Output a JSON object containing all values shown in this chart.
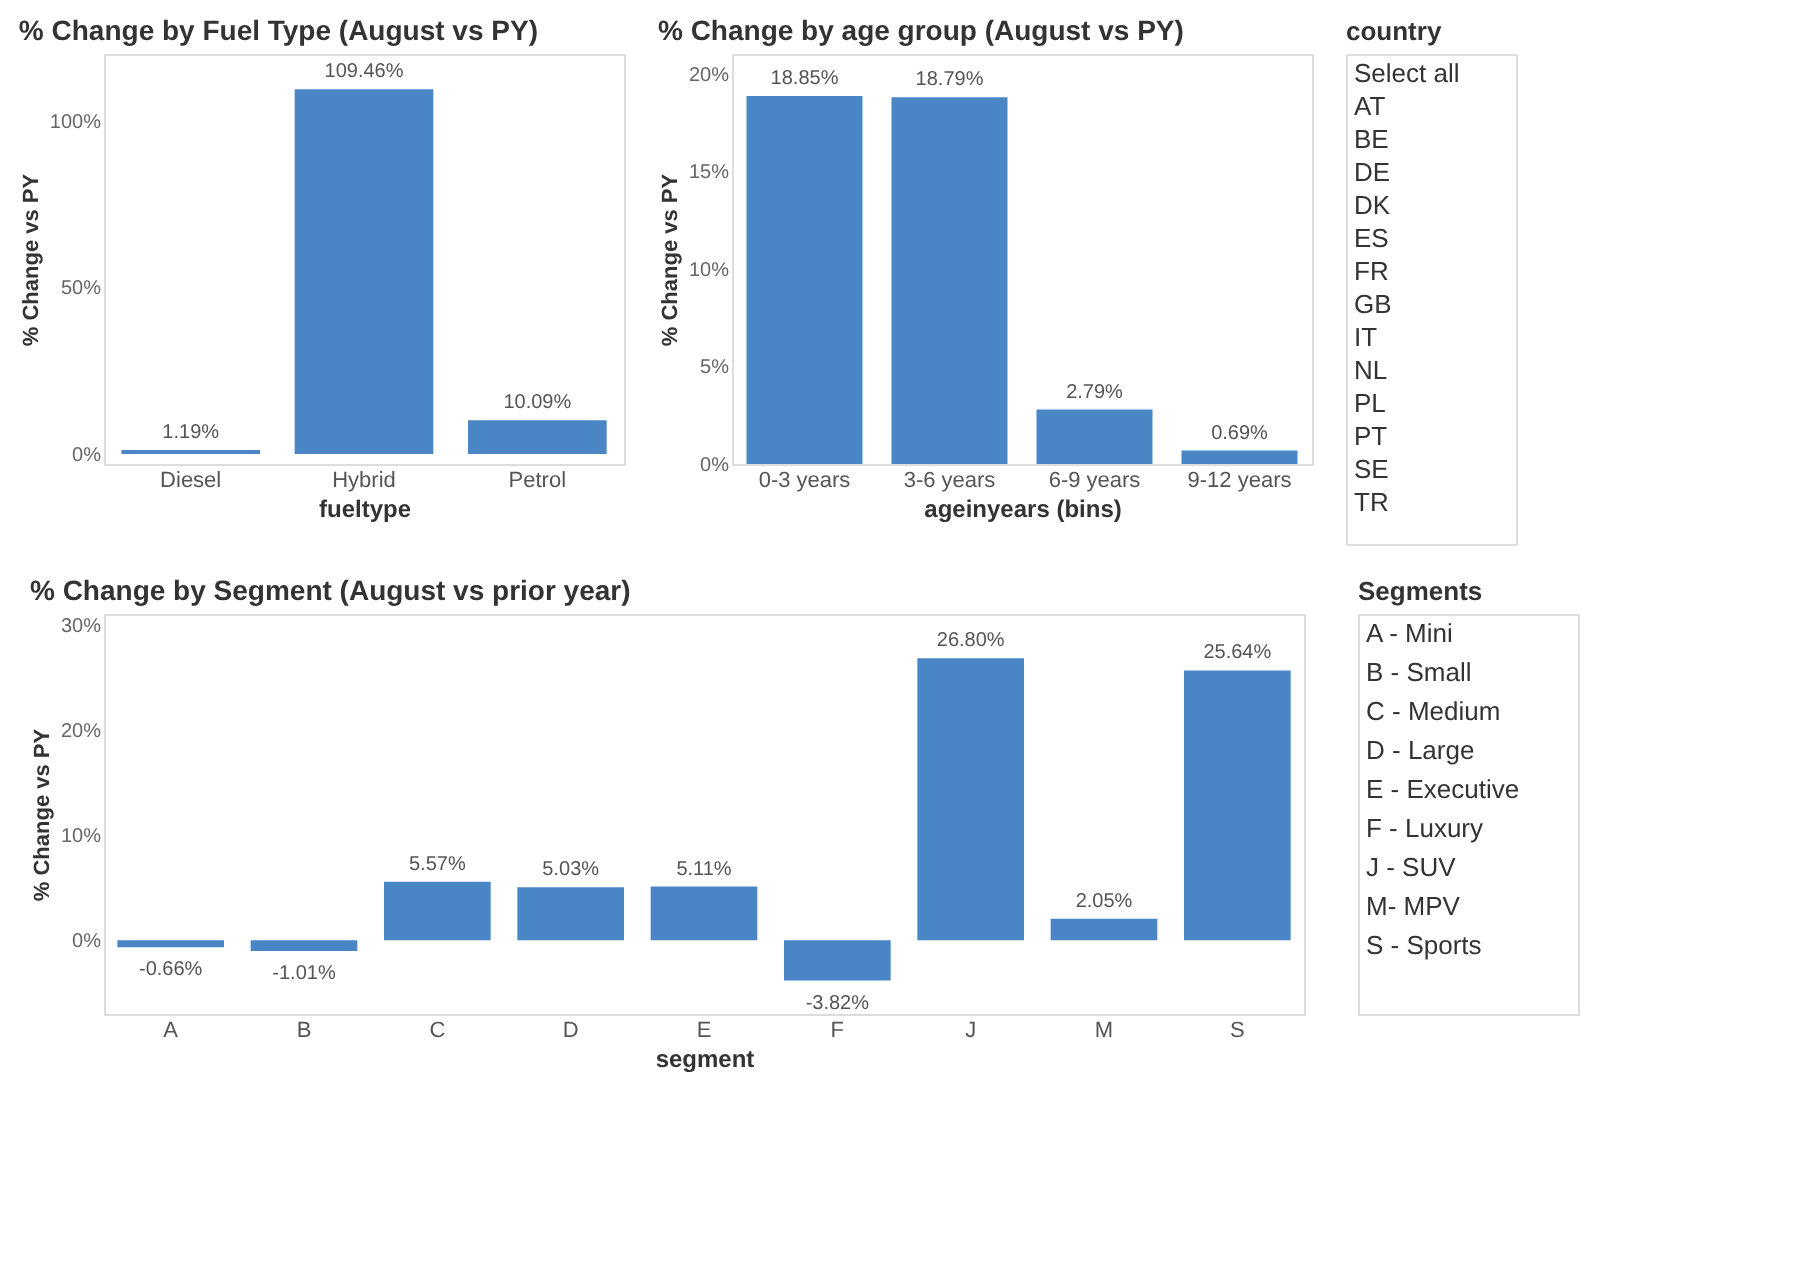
{
  "chart_data": [
    {
      "type": "bar",
      "title": "% Change by Fuel Type (August vs PY)",
      "xlabel": "fueltype",
      "ylabel": "% Change vs PY",
      "categories": [
        "Diesel",
        "Hybrid",
        "Petrol"
      ],
      "values": [
        1.19,
        109.46,
        10.09
      ],
      "value_labels": [
        "1.19%",
        "109.46%",
        "10.09%"
      ],
      "color": "#4a86c5",
      "ylim": [
        -3,
        120
      ],
      "yticks": [
        {
          "value": 0,
          "label": "0%"
        },
        {
          "value": 50,
          "label": "50%"
        },
        {
          "value": 100,
          "label": "100%"
        }
      ]
    },
    {
      "type": "bar",
      "title": "% Change by age group (August vs PY)",
      "xlabel": "ageinyears (bins)",
      "ylabel": "% Change vs PY",
      "categories": [
        "0-3 years",
        "3-6 years",
        "6-9 years",
        "9-12 years"
      ],
      "values": [
        18.85,
        18.79,
        2.79,
        0.69
      ],
      "value_labels": [
        "18.85%",
        "18.79%",
        "2.79%",
        "0.69%"
      ],
      "color": "#4a86c5",
      "ylim": [
        0,
        21
      ],
      "yticks": [
        {
          "value": 0,
          "label": "0%"
        },
        {
          "value": 5,
          "label": "5%"
        },
        {
          "value": 10,
          "label": "10%"
        },
        {
          "value": 15,
          "label": "15%"
        },
        {
          "value": 20,
          "label": "20%"
        }
      ]
    },
    {
      "type": "other",
      "title": "country",
      "annotations": [
        "Select all",
        "AT",
        "BE",
        "DE",
        "DK",
        "ES",
        "FR",
        "GB",
        "IT",
        "NL",
        "PL",
        "PT",
        "SE",
        "TR"
      ]
    },
    {
      "type": "bar",
      "title": "% Change by Segment (August vs prior year)",
      "xlabel": "segment",
      "ylabel": "% Change vs PY",
      "categories": [
        "A",
        "B",
        "C",
        "D",
        "E",
        "F",
        "J",
        "M",
        "S"
      ],
      "values": [
        -0.66,
        -1.01,
        5.57,
        5.03,
        5.11,
        -3.82,
        26.8,
        2.05,
        25.64
      ],
      "value_labels": [
        "-0.66%",
        "-1.01%",
        "5.57%",
        "5.03%",
        "5.11%",
        "-3.82%",
        "26.80%",
        "2.05%",
        "25.64%"
      ],
      "color": "#4a86c5",
      "ylim": [
        -7,
        31
      ],
      "yticks": [
        {
          "value": 0,
          "label": "0%"
        },
        {
          "value": 10,
          "label": "10%"
        },
        {
          "value": 20,
          "label": "20%"
        },
        {
          "value": 30,
          "label": "30%"
        }
      ]
    },
    {
      "type": "other",
      "title": "Segments",
      "annotations": [
        "A - Mini",
        "B - Small",
        "C - Medium",
        "D - Large",
        "E - Executive",
        "F - Luxury",
        "J - SUV",
        "M- MPV",
        "S - Sports"
      ]
    }
  ]
}
